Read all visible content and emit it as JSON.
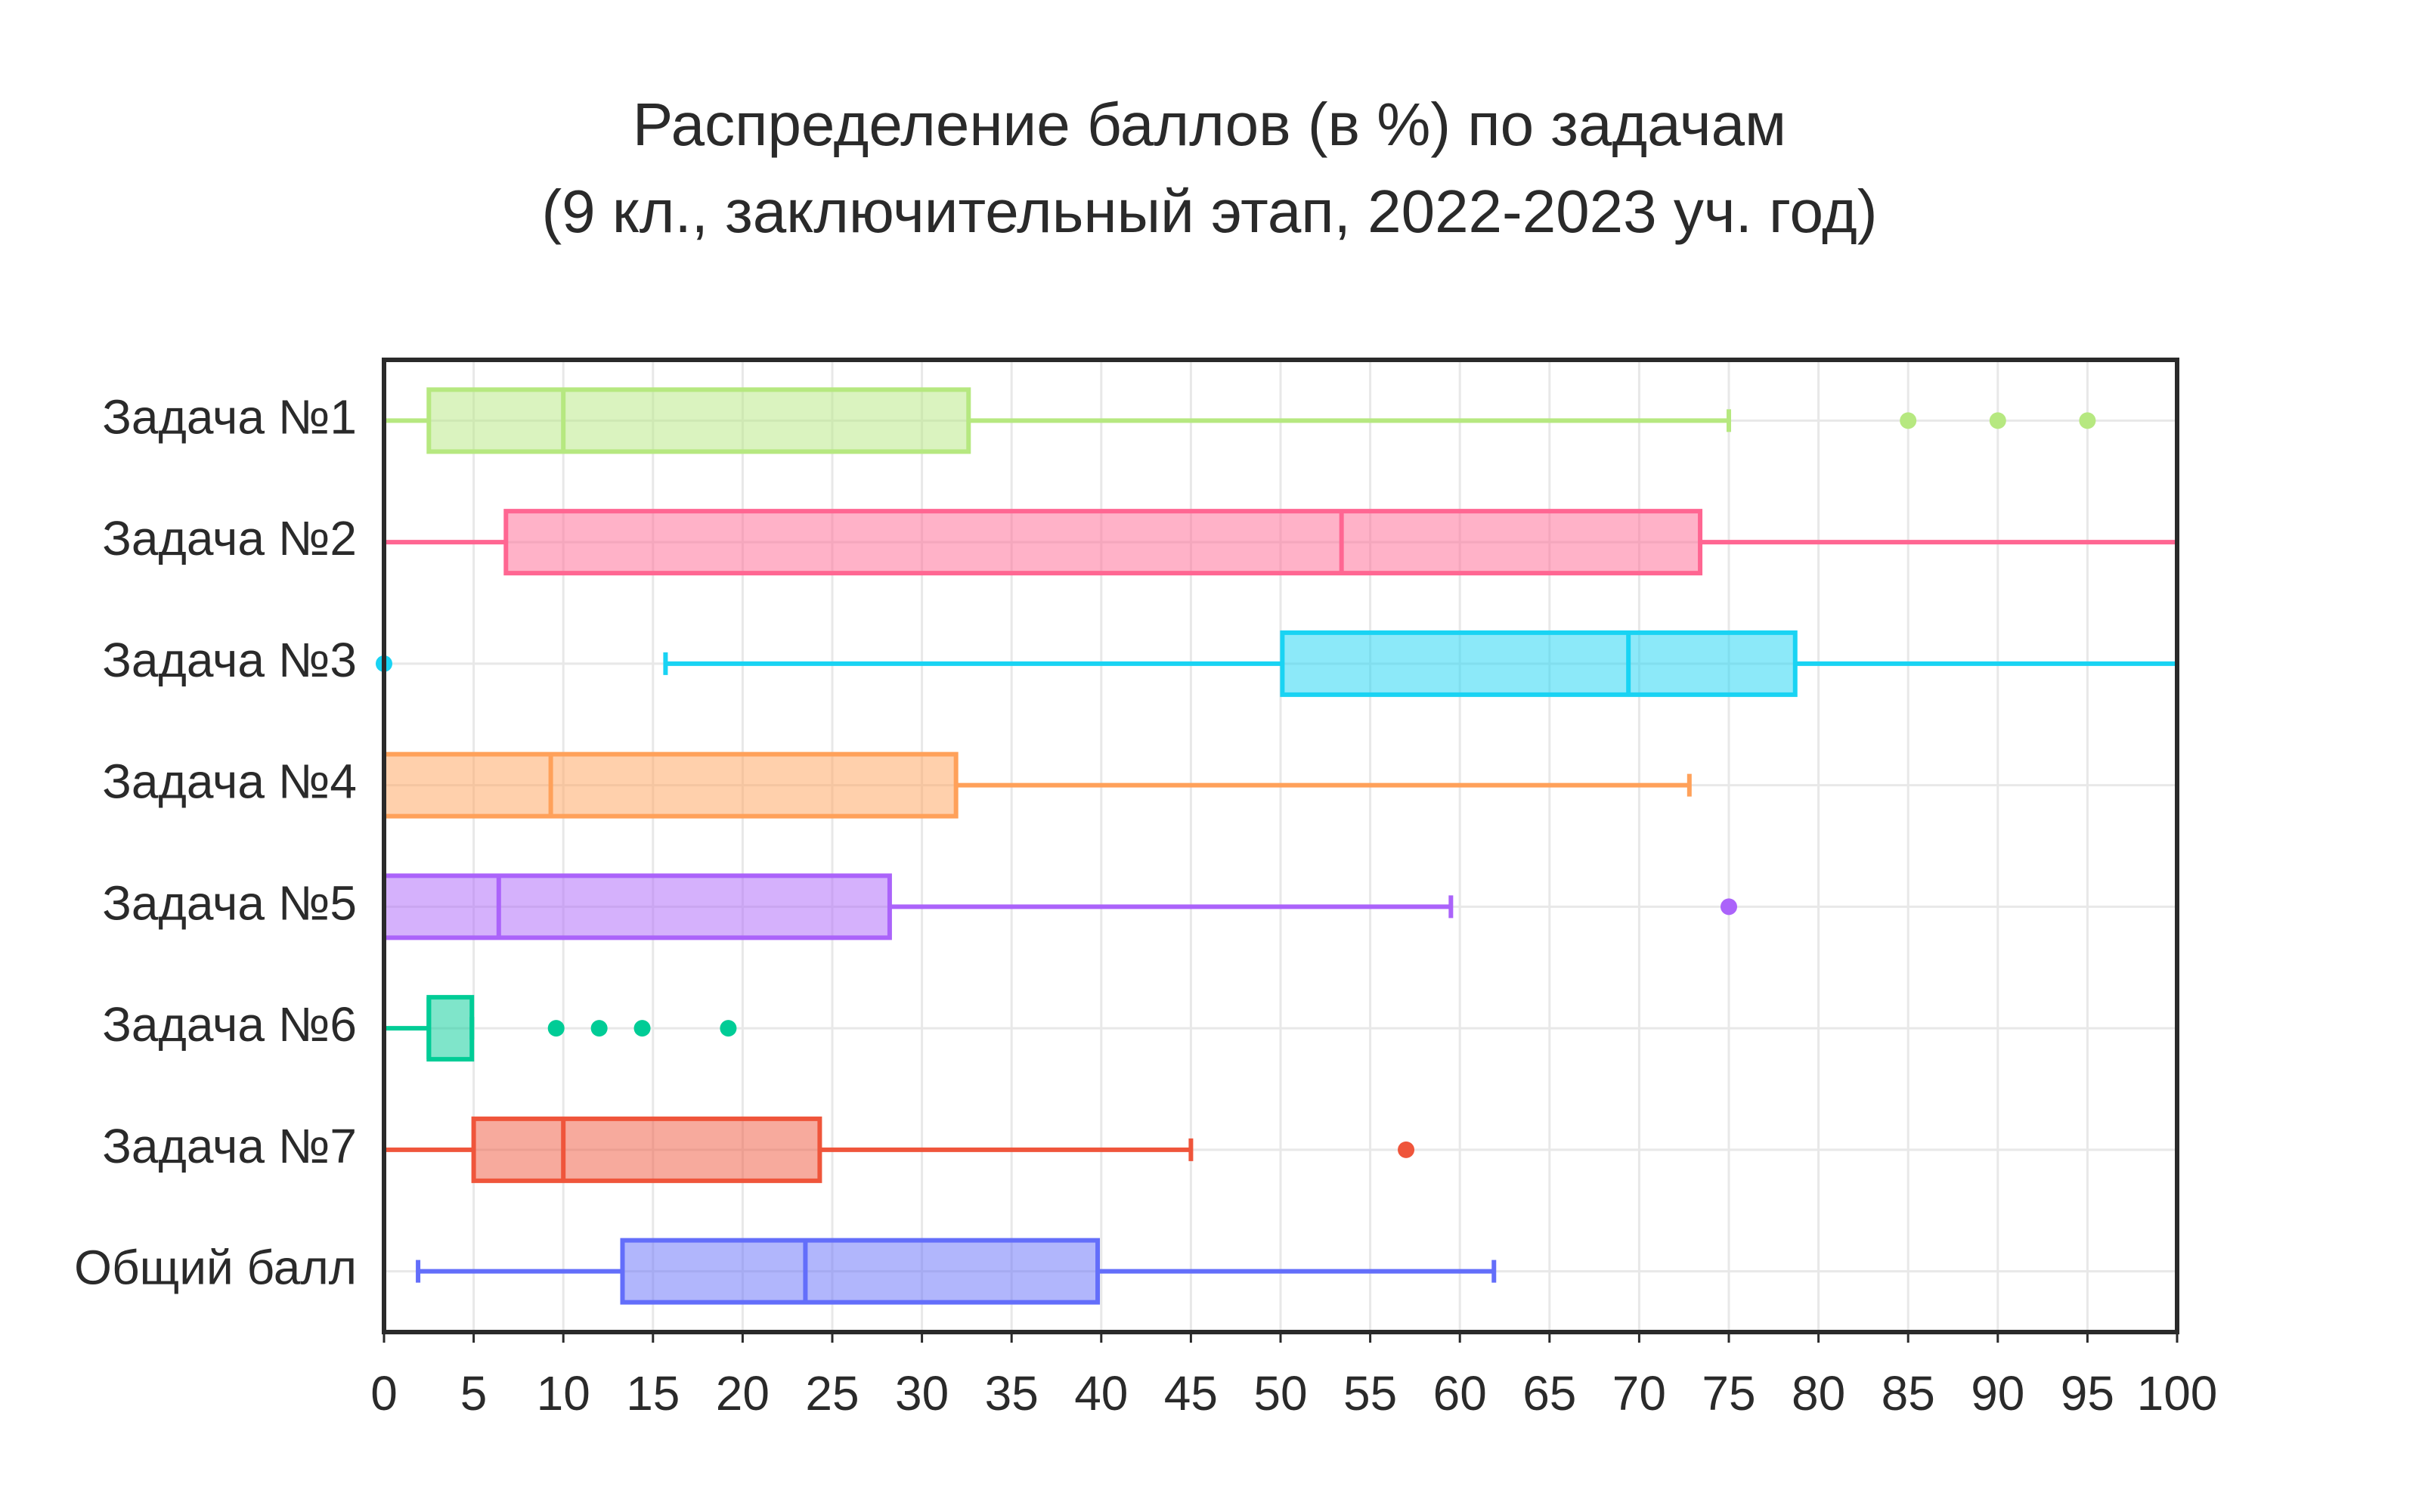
{
  "chart_data": {
    "type": "box",
    "title": [
      "Распределение баллов (в %) по задачам",
      "(9 кл., заключительный этап, 2022-2023 уч. год)"
    ],
    "series": [
      {
        "name": "Задача №1",
        "color": "#B6E880",
        "min": 0,
        "q1": 2.5,
        "median": 10,
        "q3": 32.6,
        "max": 75,
        "outliers": [
          85,
          90,
          95
        ]
      },
      {
        "name": "Задача №2",
        "color": "#FF6692",
        "min": 0,
        "q1": 6.8,
        "median": 53.4,
        "q3": 73.4,
        "max": 100,
        "outliers": []
      },
      {
        "name": "Задача №3",
        "color": "#19D3F3",
        "min": 15.7,
        "q1": 50.1,
        "median": 69.4,
        "q3": 78.7,
        "max": 100,
        "outliers": [
          0
        ]
      },
      {
        "name": "Задача №4",
        "color": "#FFA15A",
        "min": 0,
        "q1": 0,
        "median": 9.3,
        "q3": 31.9,
        "max": 72.8,
        "outliers": []
      },
      {
        "name": "Задача №5",
        "color": "#AB63FA",
        "min": 0,
        "q1": 0,
        "median": 6.4,
        "q3": 28.2,
        "max": 59.5,
        "outliers": [
          75
        ]
      },
      {
        "name": "Задача №6",
        "color": "#00CC96",
        "min": 0,
        "q1": 2.5,
        "median": 2.5,
        "q3": 4.9,
        "max": 4.9,
        "outliers": [
          9.6,
          12,
          14.4,
          19.2
        ]
      },
      {
        "name": "Задача №7",
        "color": "#EF553B",
        "min": 0,
        "q1": 5,
        "median": 10,
        "q3": 24.3,
        "max": 45,
        "outliers": [
          57
        ]
      },
      {
        "name": "Общий балл",
        "color": "#636EFA",
        "min": 1.9,
        "q1": 13.3,
        "median": 23.5,
        "q3": 39.8,
        "max": 61.9,
        "outliers": []
      }
    ],
    "xlim": [
      0,
      100
    ],
    "xticks": [
      0,
      5,
      10,
      15,
      20,
      25,
      30,
      35,
      40,
      45,
      50,
      55,
      60,
      65,
      70,
      75,
      80,
      85,
      90,
      95,
      100
    ],
    "grid": true
  }
}
